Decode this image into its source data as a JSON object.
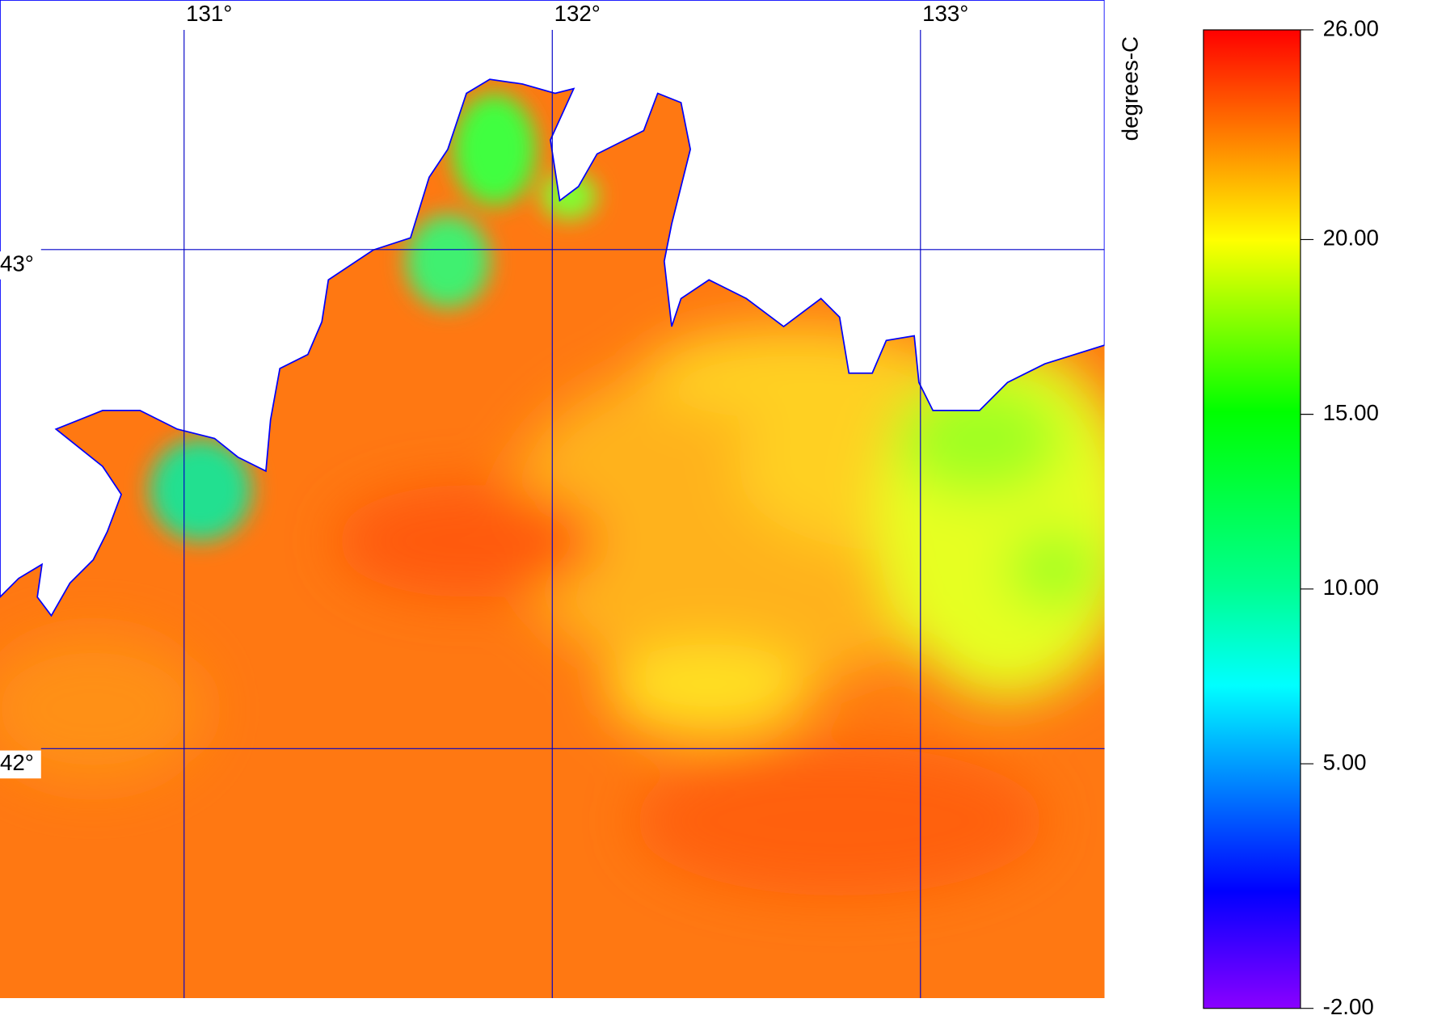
{
  "map": {
    "lon_range": [
      130.5,
      133.5
    ],
    "lat_range": [
      41.5,
      43.5
    ],
    "lon_ticks": [
      {
        "value": 131,
        "label": "131°"
      },
      {
        "value": 132,
        "label": "132°"
      },
      {
        "value": 133,
        "label": "133°"
      }
    ],
    "lat_ticks": [
      {
        "value": 43,
        "label": "43°"
      },
      {
        "value": 42,
        "label": "42°"
      }
    ],
    "colorbar": {
      "title": "degrees-C",
      "range": [
        -2,
        26
      ],
      "ticks": [
        {
          "value": 26,
          "label": "26.00"
        },
        {
          "value": 20,
          "label": "20.00"
        },
        {
          "value": 15,
          "label": "15.00"
        },
        {
          "value": 10,
          "label": "10.00"
        },
        {
          "value": 5,
          "label": "5.00"
        },
        {
          "value": -2,
          "label": "-2.00"
        }
      ]
    }
  }
}
